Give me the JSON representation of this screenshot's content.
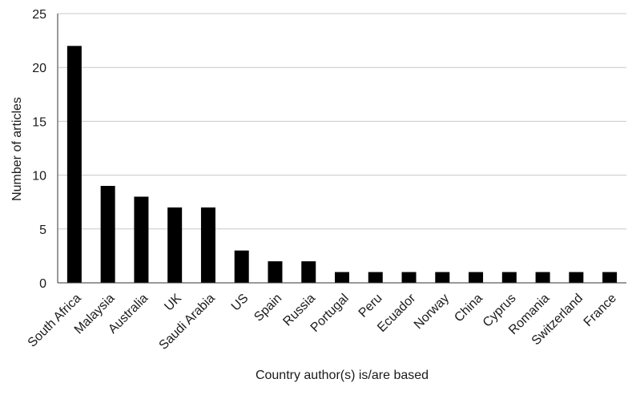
{
  "chart_data": {
    "type": "bar",
    "title": "",
    "xlabel": "Country author(s) is/are based",
    "ylabel": "Number of articles",
    "categories": [
      "South Africa",
      "Malaysia",
      "Australia",
      "UK",
      "Saudi Arabia",
      "US",
      "Spain",
      "Russia",
      "Portugal",
      "Peru",
      "Ecuador",
      "Norway",
      "China",
      "Cyprus",
      "Romania",
      "Switzerland",
      "France"
    ],
    "values": [
      22,
      9,
      8,
      7,
      7,
      3,
      2,
      2,
      1,
      1,
      1,
      1,
      1,
      1,
      1,
      1,
      1
    ],
    "ylim": [
      0,
      25
    ],
    "yticks": [
      0,
      5,
      10,
      15,
      20,
      25
    ],
    "grid": true,
    "legend": "none",
    "bar_color": "#000000",
    "grid_color": "#c8c8c8"
  }
}
